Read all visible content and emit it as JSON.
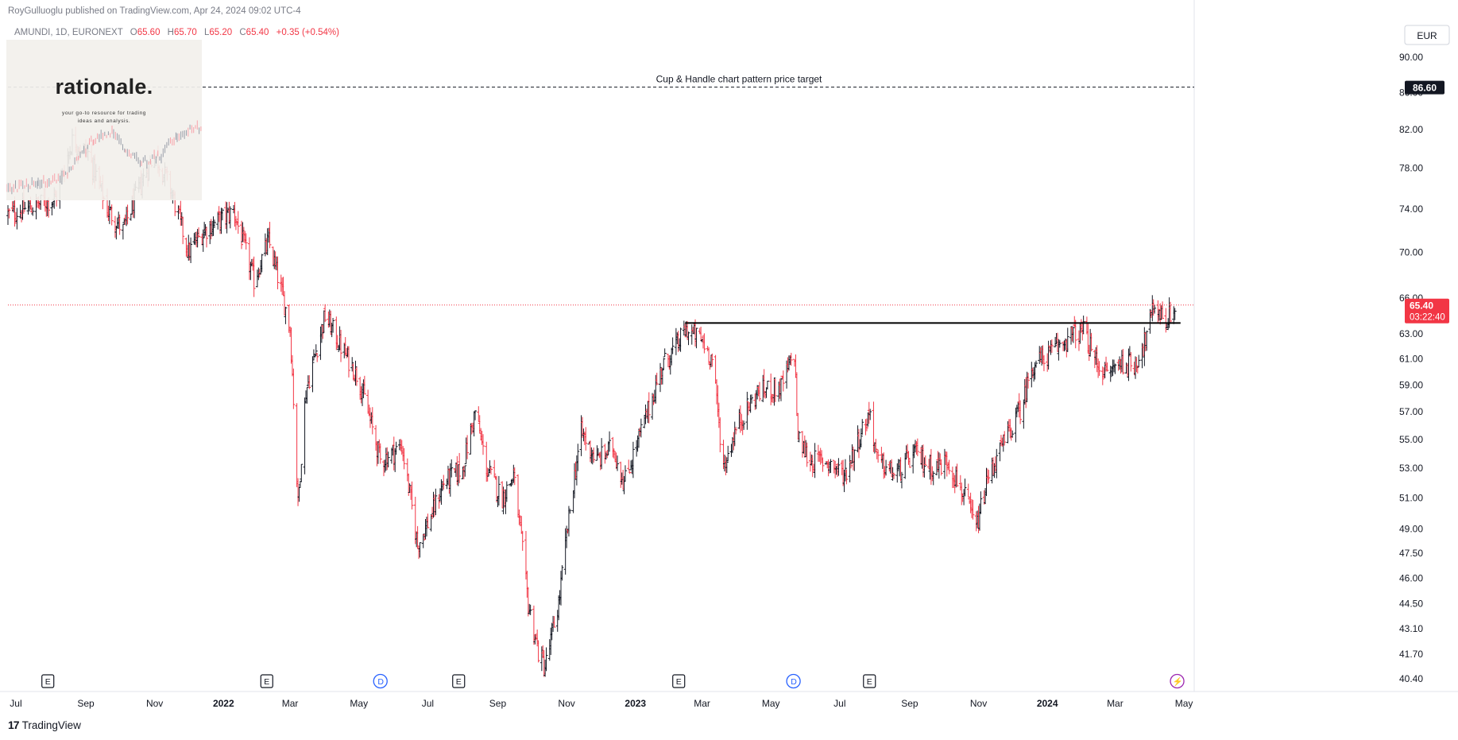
{
  "header": {
    "publisher": "RoyGulluoglu published on TradingView.com, Apr 24, 2024 09:02 UTC-4"
  },
  "symbol": {
    "name": "AMUNDI, 1D, EURONEXT",
    "open_label": "O",
    "open": "65.60",
    "high_label": "H",
    "high": "65.70",
    "low_label": "L",
    "low": "65.20",
    "close_label": "C",
    "close": "65.40",
    "change": "+0.35 (+0.54%)"
  },
  "currency": "EUR",
  "watermark": {
    "brand": "rationale.",
    "tagline_1": "your go-to resource for trading",
    "tagline_2": "ideas and analysis."
  },
  "footer": {
    "logo_mark": "17",
    "logo_text": "TradingView"
  },
  "colors": {
    "up": "#131722",
    "down": "#f23645",
    "accent": "#2962ff",
    "event_purple": "#9c27b0"
  },
  "chart_data": {
    "type": "bar",
    "subtype": "ohlc-daily",
    "title": "AMUNDI, 1D, EURONEXT",
    "y_scale": "log",
    "y_ticks": [
      "90.00",
      "86.00",
      "82.00",
      "78.00",
      "74.00",
      "70.00",
      "66.00",
      "63.00",
      "61.00",
      "59.00",
      "57.00",
      "55.00",
      "53.00",
      "51.00",
      "49.00",
      "47.50",
      "46.00",
      "44.50",
      "43.10",
      "41.70",
      "40.40"
    ],
    "x_ticks": [
      "Jul",
      "Sep",
      "Nov",
      "2022",
      "Mar",
      "May",
      "Jul",
      "Sep",
      "Nov",
      "2023",
      "Mar",
      "May",
      "Jul",
      "Sep",
      "Nov",
      "2024",
      "Mar",
      "May"
    ],
    "x_ticks_bold": [
      "2022",
      "2023",
      "2024"
    ],
    "grid": false,
    "price_path": [
      [
        "2021-06-24",
        73.5
      ],
      [
        "2021-07-15",
        74.2
      ],
      [
        "2021-08-05",
        75.0
      ],
      [
        "2021-08-20",
        80.8
      ],
      [
        "2021-09-03",
        79.5
      ],
      [
        "2021-09-20",
        74.0
      ],
      [
        "2021-10-04",
        72.0
      ],
      [
        "2021-10-20",
        76.5
      ],
      [
        "2021-11-01",
        79.5
      ],
      [
        "2021-11-15",
        76.0
      ],
      [
        "2021-12-01",
        70.0
      ],
      [
        "2021-12-15",
        72.0
      ],
      [
        "2022-01-10",
        73.8
      ],
      [
        "2022-01-28",
        67.5
      ],
      [
        "2022-02-10",
        71.0
      ],
      [
        "2022-03-01",
        63.5
      ],
      [
        "2022-03-08",
        50.5
      ],
      [
        "2022-03-15",
        58.5
      ],
      [
        "2022-04-01",
        64.5
      ],
      [
        "2022-04-15",
        62.0
      ],
      [
        "2022-05-01",
        59.5
      ],
      [
        "2022-05-20",
        53.5
      ],
      [
        "2022-06-08",
        54.5
      ],
      [
        "2022-06-22",
        48.0
      ],
      [
        "2022-07-05",
        50.0
      ],
      [
        "2022-07-15",
        52.0
      ],
      [
        "2022-08-01",
        53.0
      ],
      [
        "2022-08-12",
        57.0
      ],
      [
        "2022-08-22",
        53.0
      ],
      [
        "2022-09-05",
        51.0
      ],
      [
        "2022-09-15",
        52.5
      ],
      [
        "2022-09-28",
        44.5
      ],
      [
        "2022-10-07",
        41.8
      ],
      [
        "2022-10-13",
        41.0
      ],
      [
        "2022-10-25",
        44.5
      ],
      [
        "2022-11-08",
        52.5
      ],
      [
        "2022-11-14",
        55.5
      ],
      [
        "2022-11-28",
        53.5
      ],
      [
        "2022-12-12",
        54.5
      ],
      [
        "2022-12-22",
        52.0
      ],
      [
        "2023-01-10",
        56.5
      ],
      [
        "2023-01-25",
        60.5
      ],
      [
        "2023-02-06",
        62.0
      ],
      [
        "2023-02-15",
        63.3
      ],
      [
        "2023-03-01",
        62.5
      ],
      [
        "2023-03-10",
        61.0
      ],
      [
        "2023-03-20",
        53.0
      ],
      [
        "2023-04-01",
        56.0
      ],
      [
        "2023-04-20",
        58.5
      ],
      [
        "2023-05-10",
        58.8
      ],
      [
        "2023-05-22",
        61.5
      ],
      [
        "2023-05-25",
        55.0
      ],
      [
        "2023-06-05",
        53.5
      ],
      [
        "2023-06-20",
        53.5
      ],
      [
        "2023-07-05",
        52.5
      ],
      [
        "2023-07-20",
        55.5
      ],
      [
        "2023-07-28",
        57.0
      ],
      [
        "2023-08-03",
        53.5
      ],
      [
        "2023-08-20",
        52.5
      ],
      [
        "2023-09-05",
        54.0
      ],
      [
        "2023-09-22",
        53.0
      ],
      [
        "2023-10-05",
        53.5
      ],
      [
        "2023-10-20",
        51.0
      ],
      [
        "2023-10-30",
        49.0
      ],
      [
        "2023-11-10",
        52.5
      ],
      [
        "2023-11-25",
        55.0
      ],
      [
        "2023-12-10",
        57.5
      ],
      [
        "2023-12-18",
        60.5
      ],
      [
        "2024-01-05",
        61.5
      ],
      [
        "2024-01-20",
        62.8
      ],
      [
        "2024-02-02",
        63.2
      ],
      [
        "2024-02-12",
        61.0
      ],
      [
        "2024-02-22",
        59.8
      ],
      [
        "2024-03-06",
        60.8
      ],
      [
        "2024-03-18",
        60.5
      ],
      [
        "2024-03-28",
        62.5
      ],
      [
        "2024-04-05",
        65.5
      ],
      [
        "2024-04-15",
        64.0
      ],
      [
        "2024-04-24",
        65.4
      ]
    ],
    "lines": [
      {
        "name": "target",
        "type": "horizontal-dashed",
        "y": 86.6,
        "label": "Cup & Handle chart pattern price target"
      },
      {
        "name": "resistance",
        "type": "horizontal-solid",
        "y": 63.9,
        "x_start": "2023-02-14",
        "x_end": "2024-04-28"
      },
      {
        "name": "last-price",
        "type": "horizontal-dotted",
        "y": 65.4
      }
    ],
    "price_labels": {
      "target": "86.60",
      "last": "65.40",
      "countdown": "03:22:40"
    },
    "events": [
      {
        "date": "2021-07-29",
        "label": "E",
        "kind": "earnings"
      },
      {
        "date": "2022-02-08",
        "label": "E",
        "kind": "earnings"
      },
      {
        "date": "2022-05-20",
        "label": "D",
        "kind": "dividend"
      },
      {
        "date": "2022-07-28",
        "label": "E",
        "kind": "earnings"
      },
      {
        "date": "2023-02-08",
        "label": "E",
        "kind": "earnings"
      },
      {
        "date": "2023-05-21",
        "label": "D",
        "kind": "dividend"
      },
      {
        "date": "2023-07-27",
        "label": "E",
        "kind": "earnings"
      },
      {
        "date": "2024-04-25",
        "label": "⚡",
        "kind": "upcoming"
      }
    ]
  }
}
